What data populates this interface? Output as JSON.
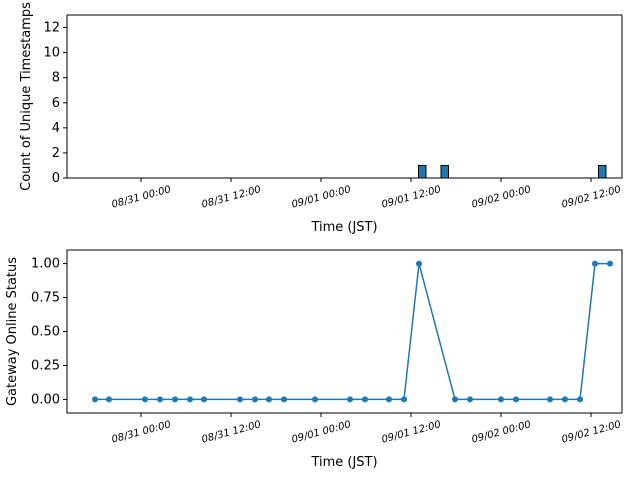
{
  "chart_data": [
    {
      "type": "bar",
      "ylabel": "Count of Unique Timestamps",
      "xlabel": "Time (JST)",
      "color": "#1f77b4",
      "x": [
        "09/01 13:30",
        "09/01 16:30",
        "09/02 13:30"
      ],
      "values": [
        1,
        1,
        1
      ],
      "xlim": [
        "08/30 14:08",
        "09/02 16:08"
      ],
      "xticks": [
        "08/31 00:00",
        "08/31 12:00",
        "09/01 00:00",
        "09/01 12:00",
        "09/02 00:00",
        "09/02 12:00"
      ],
      "ylim": [
        0,
        13
      ],
      "yticks": [
        0,
        2,
        4,
        6,
        8,
        10,
        12
      ]
    },
    {
      "type": "line",
      "ylabel": "Gateway Online Status",
      "xlabel": "Time (JST)",
      "color": "#1f77b4",
      "x": [
        "08/30 17:52",
        "08/30 19:44",
        "08/31 00:32",
        "08/31 02:32",
        "08/31 04:32",
        "08/31 06:32",
        "08/31 08:24",
        "08/31 13:12",
        "08/31 15:12",
        "08/31 17:04",
        "08/31 19:04",
        "08/31 23:12",
        "09/01 03:52",
        "09/01 05:52",
        "09/01 09:04",
        "09/01 11:04",
        "09/01 13:04",
        "09/01 17:52",
        "09/01 19:52",
        "09/02 00:00",
        "09/02 02:00",
        "09/02 06:32",
        "09/02 08:32",
        "09/02 10:32",
        "09/02 12:32",
        "09/02 14:32"
      ],
      "values": [
        0,
        0,
        0,
        0,
        0,
        0,
        0,
        0,
        0,
        0,
        0,
        0,
        0,
        0,
        0,
        0,
        1,
        0,
        0,
        0,
        0,
        0,
        0,
        0,
        1,
        1
      ],
      "xlim": [
        "08/30 14:08",
        "09/02 16:08"
      ],
      "xticks": [
        "08/31 00:00",
        "08/31 12:00",
        "09/01 00:00",
        "09/01 12:00",
        "09/02 00:00",
        "09/02 12:00"
      ],
      "ylim": [
        -0.1,
        1.1
      ],
      "yticks": [
        {
          "value": 0,
          "label": "0.00"
        },
        {
          "value": 0.25,
          "label": "0.25"
        },
        {
          "value": 0.5,
          "label": "0.50"
        },
        {
          "value": 0.75,
          "label": "0.75"
        },
        {
          "value": 1,
          "label": "1.00"
        }
      ]
    }
  ]
}
